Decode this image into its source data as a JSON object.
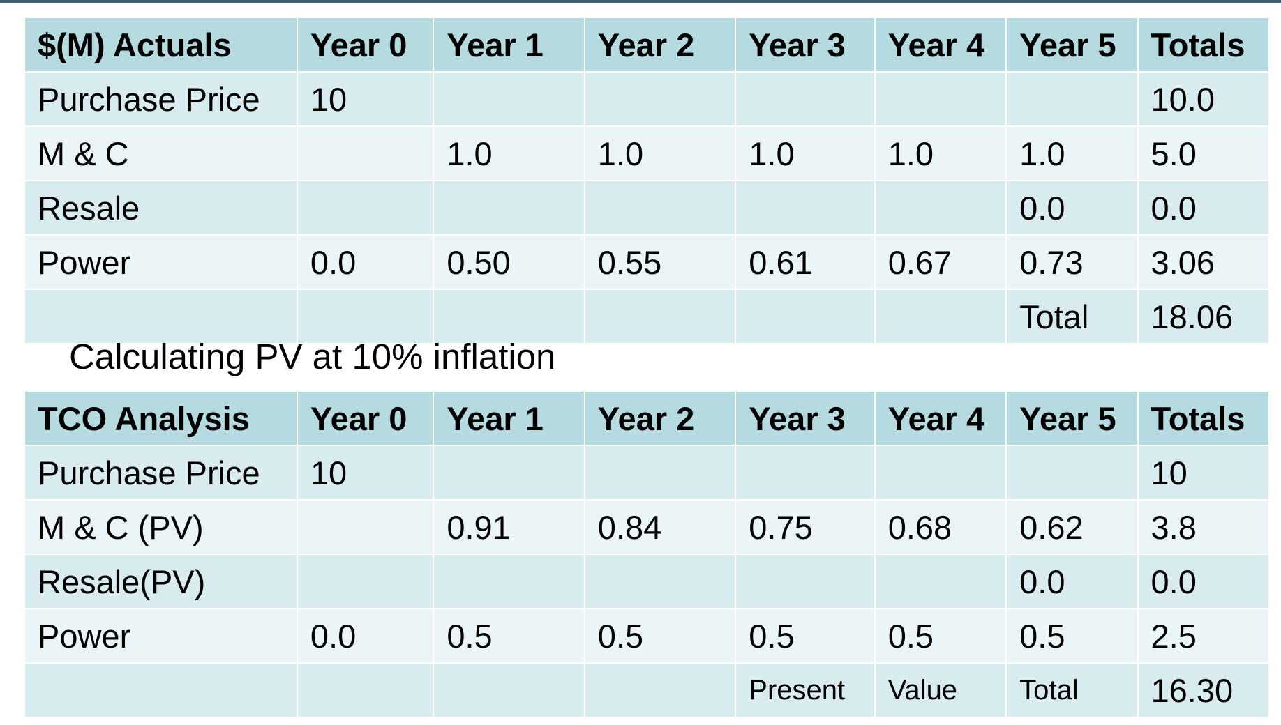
{
  "actuals": {
    "headers": [
      "$(M) Actuals",
      "Year 0",
      "Year 1",
      "Year 2",
      "Year 3",
      "Year 4",
      "Year 5",
      "Totals"
    ],
    "rows": [
      [
        "Purchase Price",
        "10",
        "",
        "",
        "",
        "",
        "",
        "10.0"
      ],
      [
        "M & C",
        "",
        "1.0",
        "1.0",
        "1.0",
        "1.0",
        "1.0",
        "5.0"
      ],
      [
        "Resale",
        "",
        "",
        "",
        "",
        "",
        "0.0",
        "0.0"
      ],
      [
        "Power",
        "0.0",
        "0.50",
        "0.55",
        "0.61",
        "0.67",
        "0.73",
        "3.06"
      ],
      [
        "",
        "",
        "",
        "",
        "",
        "",
        "Total",
        "18.06"
      ]
    ]
  },
  "caption": "Calculating PV at 10% inflation",
  "tco": {
    "headers": [
      "TCO Analysis",
      "Year 0",
      "Year 1",
      "Year 2",
      "Year 3",
      "Year 4",
      "Year 5",
      "Totals"
    ],
    "rows": [
      [
        "Purchase Price",
        "10",
        "",
        "",
        "",
        "",
        "",
        "10"
      ],
      [
        "M & C (PV)",
        "",
        "0.91",
        "0.84",
        "0.75",
        "0.68",
        "0.62",
        "3.8"
      ],
      [
        "Resale(PV)",
        "",
        "",
        "",
        "",
        "",
        "0.0",
        "0.0"
      ],
      [
        "Power",
        "0.0",
        "0.5",
        "0.5",
        "0.5",
        "0.5",
        "0.5",
        "2.5"
      ],
      [
        "",
        "",
        "",
        "",
        "Present",
        "Value",
        "Total",
        "16.30"
      ]
    ]
  },
  "colors": {
    "header_bg": "#b5dbe0",
    "row_odd_bg": "#d8ecef",
    "row_even_bg": "#ebf5f7",
    "top_rule": "#3f5f78"
  }
}
